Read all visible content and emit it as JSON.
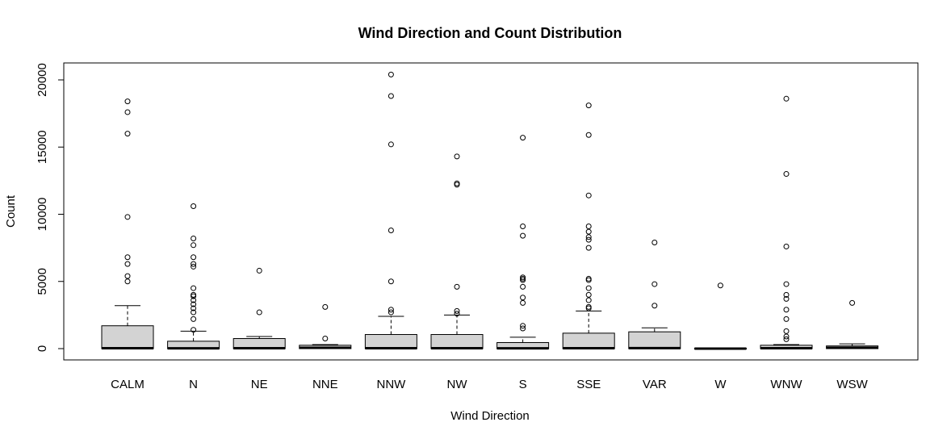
{
  "chart_data": {
    "type": "boxplot",
    "title": "Wind Direction and Count Distribution",
    "xlabel": "Wind Direction",
    "ylabel": "Count",
    "ylim": [
      -800,
      21000
    ],
    "yticks": [
      0,
      5000,
      10000,
      15000,
      20000
    ],
    "grid": false,
    "categories": [
      "CALM",
      "N",
      "NE",
      "NNE",
      "NNW",
      "NW",
      "S",
      "SSE",
      "VAR",
      "W",
      "WNW",
      "WSW"
    ],
    "boxes": [
      {
        "q1": 0,
        "median": 30,
        "q3": 1700,
        "whisker_low": 0,
        "whisker_high": 3200,
        "outliers": [
          5000,
          5400,
          6300,
          6800,
          9800,
          16000,
          17600,
          18400
        ]
      },
      {
        "q1": 0,
        "median": 20,
        "q3": 550,
        "whisker_low": 0,
        "whisker_high": 1300,
        "outliers": [
          1400,
          2200,
          2700,
          3000,
          3300,
          3600,
          3900,
          4000,
          4500,
          6100,
          6300,
          6800,
          7700,
          8200,
          10600
        ]
      },
      {
        "q1": 0,
        "median": 30,
        "q3": 750,
        "whisker_low": 0,
        "whisker_high": 900,
        "outliers": [
          2700,
          5800
        ]
      },
      {
        "q1": 0,
        "median": 60,
        "q3": 250,
        "whisker_low": 0,
        "whisker_high": 300,
        "outliers": [
          750,
          3100
        ]
      },
      {
        "q1": 0,
        "median": 30,
        "q3": 1050,
        "whisker_low": 0,
        "whisker_high": 2400,
        "outliers": [
          2700,
          2900,
          5000,
          8800,
          15200,
          18800,
          20400
        ]
      },
      {
        "q1": 0,
        "median": 30,
        "q3": 1050,
        "whisker_low": 0,
        "whisker_high": 2500,
        "outliers": [
          2600,
          2800,
          4600,
          12200,
          12300,
          14300
        ]
      },
      {
        "q1": 0,
        "median": 20,
        "q3": 450,
        "whisker_low": 0,
        "whisker_high": 850,
        "outliers": [
          1500,
          1700,
          3400,
          3800,
          4600,
          5100,
          5200,
          5300,
          8400,
          9100,
          15700
        ]
      },
      {
        "q1": 0,
        "median": 30,
        "q3": 1150,
        "whisker_low": 0,
        "whisker_high": 2800,
        "outliers": [
          3000,
          3100,
          3600,
          4000,
          4500,
          5100,
          5200,
          7500,
          8100,
          8300,
          8700,
          9100,
          11400,
          15900,
          18100
        ]
      },
      {
        "q1": 0,
        "median": 40,
        "q3": 1250,
        "whisker_low": 0,
        "whisker_high": 1550,
        "outliers": [
          3200,
          4800,
          7900
        ]
      },
      {
        "q1": 0,
        "median": 0,
        "q3": 30,
        "whisker_low": 0,
        "whisker_high": 50,
        "outliers": [
          4700
        ]
      },
      {
        "q1": 0,
        "median": 30,
        "q3": 250,
        "whisker_low": 0,
        "whisker_high": 300,
        "outliers": [
          700,
          900,
          1300,
          2200,
          2900,
          3700,
          4000,
          4800,
          7600,
          13000,
          18600
        ]
      },
      {
        "q1": 0,
        "median": 60,
        "q3": 200,
        "whisker_low": 0,
        "whisker_high": 350,
        "outliers": [
          3400
        ]
      }
    ]
  }
}
